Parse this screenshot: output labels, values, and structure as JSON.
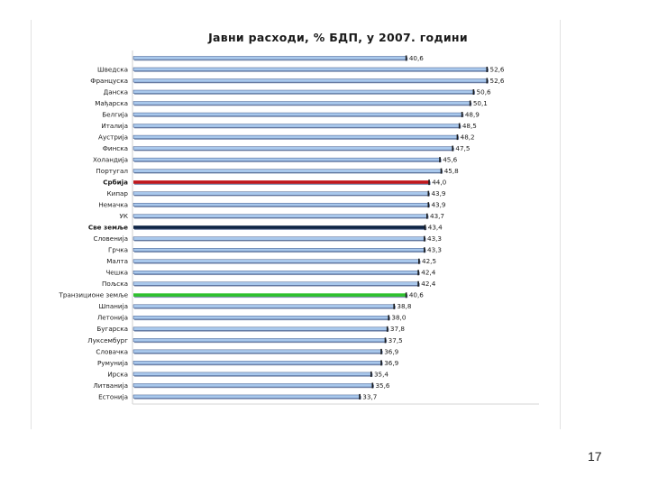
{
  "slide": {
    "page_number": "17"
  },
  "chart_data": {
    "type": "bar",
    "orientation": "horizontal",
    "title": "Јавни расходи, % БДП, у 2007. години",
    "xlabel": "",
    "ylabel": "",
    "xlim": [
      0,
      60
    ],
    "grid": false,
    "legend": "none",
    "colors": {
      "default": "#a9c8ec",
      "default_edge": "#1f3b73",
      "serbia": "#c0171c",
      "all_countries": "#0f2545",
      "transition": "#2fc12f"
    },
    "categories": [
      "",
      "Шведска",
      "Француска",
      "Данска",
      "Мађарска",
      "Белгија",
      "Италија",
      "Аустрија",
      "Финска",
      "Холандија",
      "Португал",
      "Србија",
      "Кипар",
      "Немачка",
      "УК",
      "Све земље",
      "Словенија",
      "Грчка",
      "Малта",
      "Чешка",
      "Пољска",
      "Транзиционе земље",
      "Шпанија",
      "Летонија",
      "Бугарска",
      "Луксембург",
      "Словачка",
      "Румунија",
      "Ирска",
      "Литванија",
      "Естонија"
    ],
    "values": [
      40.6,
      52.6,
      52.6,
      50.6,
      50.1,
      48.9,
      48.5,
      48.2,
      47.5,
      45.6,
      45.8,
      44.0,
      43.9,
      43.9,
      43.7,
      43.4,
      43.3,
      43.3,
      42.5,
      42.4,
      42.4,
      40.6,
      38.8,
      38.0,
      37.8,
      37.5,
      36.9,
      36.9,
      35.4,
      35.6,
      33.7
    ],
    "value_labels": [
      "40,6",
      "52,6",
      "52,6",
      "50,6",
      "50,1",
      "48,9",
      "48,5",
      "48,2",
      "47,5",
      "45,6",
      "45,8",
      "44,0",
      "43,9",
      "43,9",
      "43,7",
      "43,4",
      "43,3",
      "43,3",
      "42,5",
      "42,4",
      "42,4",
      "40,6",
      "38,8",
      "38,0",
      "37,8",
      "37,5",
      "36,9",
      "36,9",
      "35,4",
      "35,6",
      "33,7"
    ],
    "highlight": {
      "Србија": "serbia",
      "Све земље": "all_countries",
      "Транзиционе земље": "transition"
    },
    "bold_labels": [
      "Србија",
      "Све земље"
    ]
  }
}
